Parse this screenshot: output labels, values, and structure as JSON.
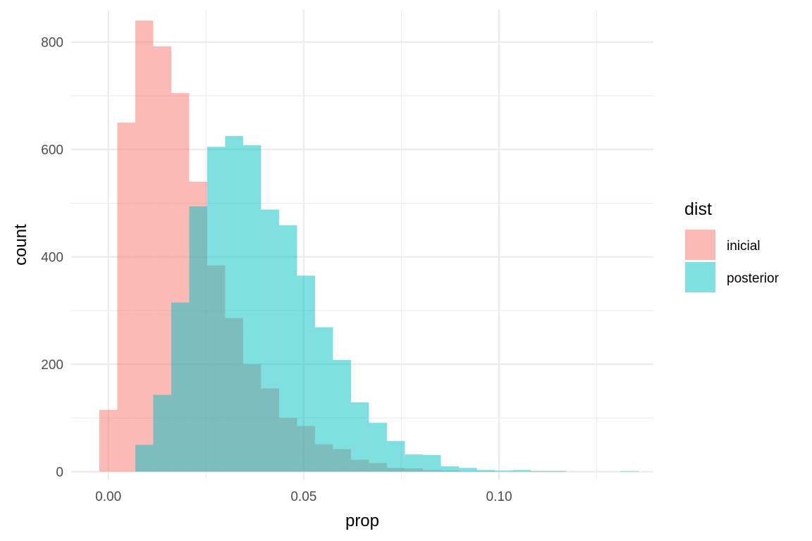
{
  "chart_data": {
    "type": "histogram",
    "xlabel": "prop",
    "ylabel": "count",
    "xlim": [
      -0.0095,
      0.1395
    ],
    "ylim": [
      -15,
      860
    ],
    "x_ticks": [
      0.0,
      0.05,
      0.1
    ],
    "x_tick_labels": [
      "0.00",
      "0.05",
      "0.10"
    ],
    "y_ticks": [
      0,
      200,
      400,
      600,
      800
    ],
    "y_tick_labels": [
      "0",
      "200",
      "400",
      "600",
      "800"
    ],
    "bin_width": 0.0046,
    "grid": true,
    "legend": {
      "title": "dist",
      "position": "right"
    },
    "series": [
      {
        "name": "inicial",
        "color": "#F8766D",
        "opacity": 0.5,
        "bins": [
          {
            "x0": -0.0023,
            "x1": 0.0023,
            "count": 115
          },
          {
            "x0": 0.0023,
            "x1": 0.0069,
            "count": 650
          },
          {
            "x0": 0.0069,
            "x1": 0.0115,
            "count": 840
          },
          {
            "x0": 0.0115,
            "x1": 0.0161,
            "count": 792
          },
          {
            "x0": 0.0161,
            "x1": 0.0207,
            "count": 705
          },
          {
            "x0": 0.0207,
            "x1": 0.0253,
            "count": 540
          },
          {
            "x0": 0.0253,
            "x1": 0.0299,
            "count": 384
          },
          {
            "x0": 0.0299,
            "x1": 0.0345,
            "count": 286
          },
          {
            "x0": 0.0345,
            "x1": 0.0391,
            "count": 200
          },
          {
            "x0": 0.0391,
            "x1": 0.0437,
            "count": 155
          },
          {
            "x0": 0.0437,
            "x1": 0.0483,
            "count": 100
          },
          {
            "x0": 0.0483,
            "x1": 0.0529,
            "count": 85
          },
          {
            "x0": 0.0529,
            "x1": 0.0575,
            "count": 51
          },
          {
            "x0": 0.0575,
            "x1": 0.0621,
            "count": 42
          },
          {
            "x0": 0.0621,
            "x1": 0.0667,
            "count": 22
          },
          {
            "x0": 0.0667,
            "x1": 0.0713,
            "count": 16
          },
          {
            "x0": 0.0713,
            "x1": 0.0759,
            "count": 7
          },
          {
            "x0": 0.0759,
            "x1": 0.0805,
            "count": 6
          },
          {
            "x0": 0.0805,
            "x1": 0.0851,
            "count": 3
          },
          {
            "x0": 0.0851,
            "x1": 0.0897,
            "count": 2
          },
          {
            "x0": 0.0897,
            "x1": 0.0943,
            "count": 1
          },
          {
            "x0": 0.0943,
            "x1": 0.0989,
            "count": 1
          },
          {
            "x0": 0.1079,
            "x1": 0.1125,
            "count": 1
          },
          {
            "x0": 0.1125,
            "x1": 0.1171,
            "count": 1
          }
        ]
      },
      {
        "name": "posterior",
        "color": "#00BFC4",
        "opacity": 0.5,
        "bins": [
          {
            "x0": 0.0069,
            "x1": 0.0115,
            "count": 50
          },
          {
            "x0": 0.0115,
            "x1": 0.0161,
            "count": 143
          },
          {
            "x0": 0.0161,
            "x1": 0.0207,
            "count": 315
          },
          {
            "x0": 0.0207,
            "x1": 0.0253,
            "count": 494
          },
          {
            "x0": 0.0253,
            "x1": 0.0299,
            "count": 605
          },
          {
            "x0": 0.0299,
            "x1": 0.0345,
            "count": 625
          },
          {
            "x0": 0.0345,
            "x1": 0.0391,
            "count": 608
          },
          {
            "x0": 0.0391,
            "x1": 0.0437,
            "count": 488
          },
          {
            "x0": 0.0437,
            "x1": 0.0483,
            "count": 459
          },
          {
            "x0": 0.0483,
            "x1": 0.0529,
            "count": 365
          },
          {
            "x0": 0.0529,
            "x1": 0.0575,
            "count": 269
          },
          {
            "x0": 0.0575,
            "x1": 0.0621,
            "count": 208
          },
          {
            "x0": 0.0621,
            "x1": 0.0667,
            "count": 129
          },
          {
            "x0": 0.0667,
            "x1": 0.0713,
            "count": 91
          },
          {
            "x0": 0.0713,
            "x1": 0.0759,
            "count": 57
          },
          {
            "x0": 0.0759,
            "x1": 0.0805,
            "count": 32
          },
          {
            "x0": 0.0805,
            "x1": 0.0851,
            "count": 31
          },
          {
            "x0": 0.0851,
            "x1": 0.0897,
            "count": 10
          },
          {
            "x0": 0.0897,
            "x1": 0.0943,
            "count": 7
          },
          {
            "x0": 0.0943,
            "x1": 0.0989,
            "count": 3
          },
          {
            "x0": 0.0989,
            "x1": 0.1035,
            "count": 2
          },
          {
            "x0": 0.1035,
            "x1": 0.1081,
            "count": 3
          },
          {
            "x0": 0.1081,
            "x1": 0.1127,
            "count": 1
          },
          {
            "x0": 0.1127,
            "x1": 0.1173,
            "count": 1
          },
          {
            "x0": 0.1311,
            "x1": 0.1357,
            "count": 1
          }
        ]
      }
    ]
  }
}
